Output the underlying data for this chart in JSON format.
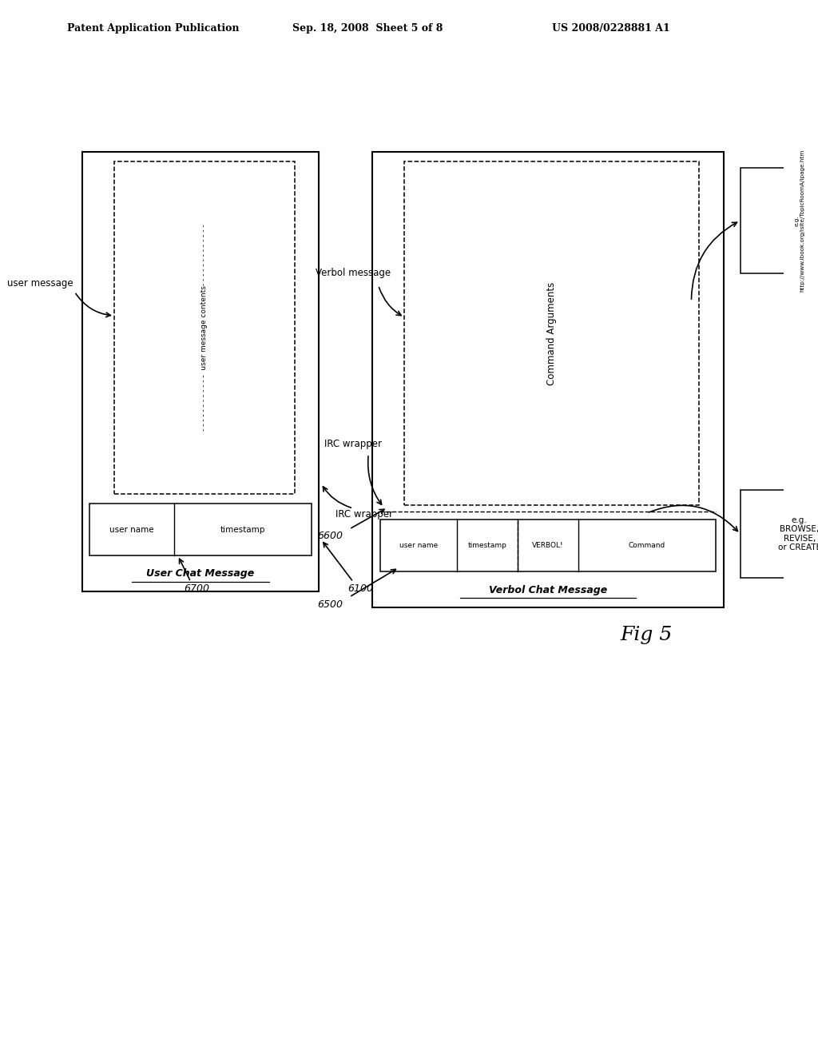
{
  "bg_color": "#ffffff",
  "header_left": "Patent Application Publication",
  "header_mid": "Sep. 18, 2008  Sheet 5 of 8",
  "header_right": "US 2008/0228881 A1",
  "fig_label": "Fig 5",
  "user_chat_title": "User Chat Message",
  "verbol_chat_title": "Verbol Chat Message",
  "label_6700": "6700",
  "label_6100": "6100",
  "label_6500": "6500",
  "label_6600": "6600",
  "label_user_message": "user message",
  "label_irc_wrapper1": "IRC wrapper",
  "label_verbol_message": "Verbol message",
  "label_irc_wrapper2": "IRC wrapper",
  "label_eg_commands": "e.g.\nBROWSE,\nREVISE,\nor CREATE",
  "label_eg_url": "e.g.\nhttp://www.ibook.org/isite/TopicRoomA/ipage.htm"
}
